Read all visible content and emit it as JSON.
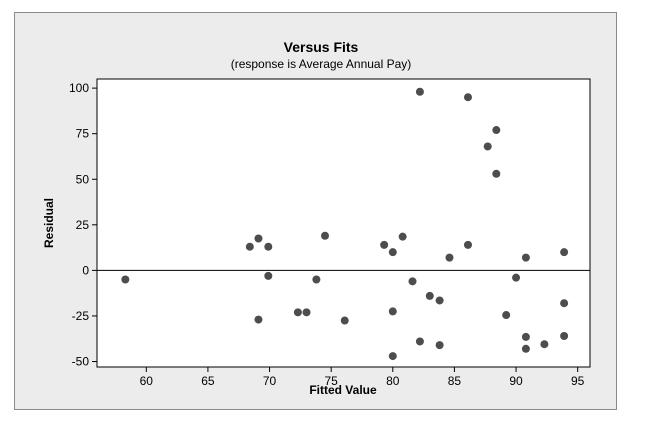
{
  "chart_data": {
    "type": "scatter",
    "title": "Versus Fits",
    "subtitle": "(response is Average Annual Pay)",
    "xlabel": "Fitted Value",
    "ylabel": "Residual",
    "xlim": [
      56,
      96
    ],
    "ylim": [
      -53,
      105
    ],
    "xticks": [
      60,
      65,
      70,
      75,
      80,
      85,
      90,
      95
    ],
    "yticks": [
      -50,
      -25,
      0,
      25,
      50,
      75,
      100
    ],
    "reference_line_y": 0,
    "grid": false,
    "colors": {
      "point": "#4d4d4d",
      "plot_background": "#ffffff",
      "frame_background": "#ececec"
    },
    "points": [
      {
        "x": 58.3,
        "y": -5
      },
      {
        "x": 68.4,
        "y": 13
      },
      {
        "x": 69.1,
        "y": 17.5
      },
      {
        "x": 69.1,
        "y": -27
      },
      {
        "x": 69.9,
        "y": 13
      },
      {
        "x": 69.9,
        "y": -3
      },
      {
        "x": 72.3,
        "y": -23
      },
      {
        "x": 73.0,
        "y": -23
      },
      {
        "x": 73.8,
        "y": -5
      },
      {
        "x": 74.5,
        "y": 19
      },
      {
        "x": 76.1,
        "y": -27.5
      },
      {
        "x": 79.3,
        "y": 14
      },
      {
        "x": 80.0,
        "y": 10
      },
      {
        "x": 80.0,
        "y": -22.5
      },
      {
        "x": 80.0,
        "y": -47
      },
      {
        "x": 80.8,
        "y": 18.5
      },
      {
        "x": 81.6,
        "y": -6
      },
      {
        "x": 82.2,
        "y": 98
      },
      {
        "x": 82.2,
        "y": -39
      },
      {
        "x": 83.0,
        "y": -14
      },
      {
        "x": 83.8,
        "y": -16.5
      },
      {
        "x": 83.8,
        "y": -41
      },
      {
        "x": 84.6,
        "y": 7
      },
      {
        "x": 86.1,
        "y": 95
      },
      {
        "x": 86.1,
        "y": 14
      },
      {
        "x": 87.7,
        "y": 68
      },
      {
        "x": 88.4,
        "y": 77
      },
      {
        "x": 88.4,
        "y": 53
      },
      {
        "x": 89.2,
        "y": -24.5
      },
      {
        "x": 90.0,
        "y": -4
      },
      {
        "x": 90.8,
        "y": 7
      },
      {
        "x": 90.8,
        "y": -36.5
      },
      {
        "x": 90.8,
        "y": -43
      },
      {
        "x": 92.3,
        "y": -40.5
      },
      {
        "x": 93.9,
        "y": 10
      },
      {
        "x": 93.9,
        "y": -18
      },
      {
        "x": 93.9,
        "y": -36
      }
    ]
  }
}
